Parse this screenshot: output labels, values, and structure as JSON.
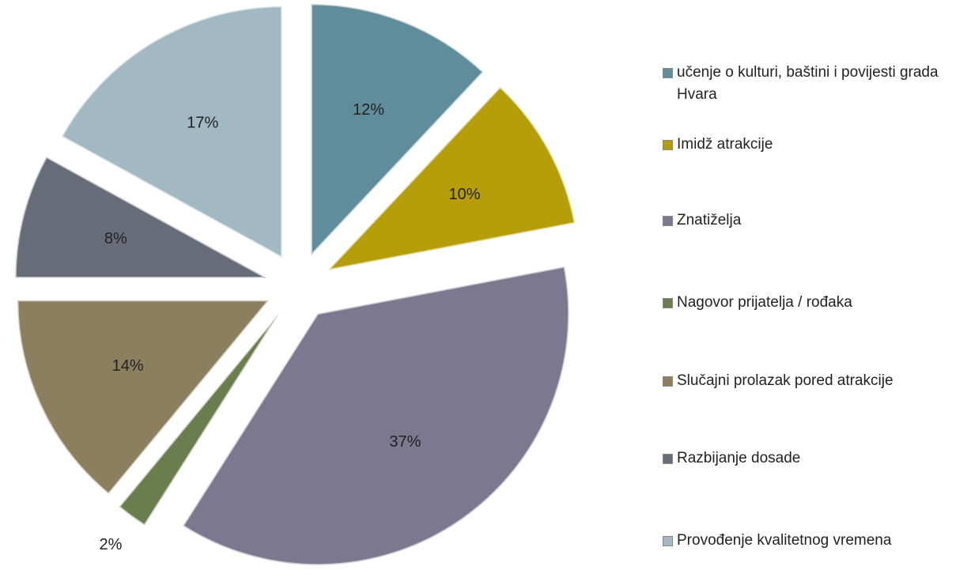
{
  "chart_data": {
    "type": "pie",
    "categories": [
      "učenje o kulturi, baštini i povijesti grada Hvara",
      "Imidž atrakcije",
      "Znatiželja",
      "Nagovor prijatelja / rođaka",
      "Slučajni prolazak pored atrakcije",
      "Razbijanje dosade",
      "Provođenje kvalitetnog vremena"
    ],
    "values": [
      12,
      10,
      37,
      2,
      14,
      8,
      17
    ],
    "value_labels": [
      "12%",
      "10%",
      "37%",
      "2%",
      "14%",
      "8%",
      "17%"
    ],
    "colors": [
      "#5f8d9b",
      "#b59e0a",
      "#7c7890",
      "#6a7d4f",
      "#8b7f5f",
      "#686c79",
      "#a2b9c4"
    ],
    "legend": "right"
  }
}
